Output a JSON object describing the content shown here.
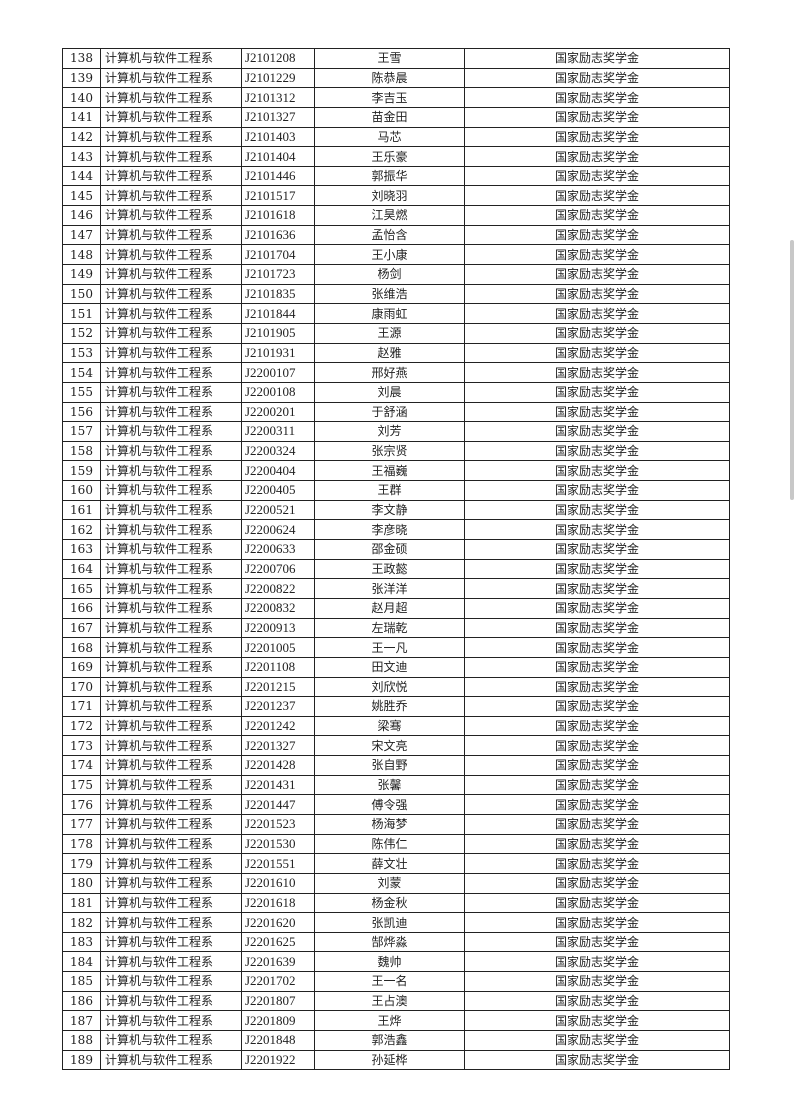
{
  "table": {
    "rows": [
      [
        "138",
        "计算机与软件工程系",
        "J2101208",
        "王雪",
        "国家励志奖学金"
      ],
      [
        "139",
        "计算机与软件工程系",
        "J2101229",
        "陈恭晨",
        "国家励志奖学金"
      ],
      [
        "140",
        "计算机与软件工程系",
        "J2101312",
        "李吉玉",
        "国家励志奖学金"
      ],
      [
        "141",
        "计算机与软件工程系",
        "J2101327",
        "苗金田",
        "国家励志奖学金"
      ],
      [
        "142",
        "计算机与软件工程系",
        "J2101403",
        "马芯",
        "国家励志奖学金"
      ],
      [
        "143",
        "计算机与软件工程系",
        "J2101404",
        "王乐豪",
        "国家励志奖学金"
      ],
      [
        "144",
        "计算机与软件工程系",
        "J2101446",
        "郭振华",
        "国家励志奖学金"
      ],
      [
        "145",
        "计算机与软件工程系",
        "J2101517",
        "刘晓羽",
        "国家励志奖学金"
      ],
      [
        "146",
        "计算机与软件工程系",
        "J2101618",
        "江昊燃",
        "国家励志奖学金"
      ],
      [
        "147",
        "计算机与软件工程系",
        "J2101636",
        "孟怡含",
        "国家励志奖学金"
      ],
      [
        "148",
        "计算机与软件工程系",
        "J2101704",
        "王小康",
        "国家励志奖学金"
      ],
      [
        "149",
        "计算机与软件工程系",
        "J2101723",
        "杨剑",
        "国家励志奖学金"
      ],
      [
        "150",
        "计算机与软件工程系",
        "J2101835",
        "张维浩",
        "国家励志奖学金"
      ],
      [
        "151",
        "计算机与软件工程系",
        "J2101844",
        "康雨虹",
        "国家励志奖学金"
      ],
      [
        "152",
        "计算机与软件工程系",
        "J2101905",
        "王源",
        "国家励志奖学金"
      ],
      [
        "153",
        "计算机与软件工程系",
        "J2101931",
        "赵雅",
        "国家励志奖学金"
      ],
      [
        "154",
        "计算机与软件工程系",
        "J2200107",
        "邢好燕",
        "国家励志奖学金"
      ],
      [
        "155",
        "计算机与软件工程系",
        "J2200108",
        "刘晨",
        "国家励志奖学金"
      ],
      [
        "156",
        "计算机与软件工程系",
        "J2200201",
        "于舒涵",
        "国家励志奖学金"
      ],
      [
        "157",
        "计算机与软件工程系",
        "J2200311",
        "刘芳",
        "国家励志奖学金"
      ],
      [
        "158",
        "计算机与软件工程系",
        "J2200324",
        "张宗贤",
        "国家励志奖学金"
      ],
      [
        "159",
        "计算机与软件工程系",
        "J2200404",
        "王福巍",
        "国家励志奖学金"
      ],
      [
        "160",
        "计算机与软件工程系",
        "J2200405",
        "王群",
        "国家励志奖学金"
      ],
      [
        "161",
        "计算机与软件工程系",
        "J2200521",
        "李文静",
        "国家励志奖学金"
      ],
      [
        "162",
        "计算机与软件工程系",
        "J2200624",
        "李彦晓",
        "国家励志奖学金"
      ],
      [
        "163",
        "计算机与软件工程系",
        "J2200633",
        "邵金硕",
        "国家励志奖学金"
      ],
      [
        "164",
        "计算机与软件工程系",
        "J2200706",
        "王政懿",
        "国家励志奖学金"
      ],
      [
        "165",
        "计算机与软件工程系",
        "J2200822",
        "张洋洋",
        "国家励志奖学金"
      ],
      [
        "166",
        "计算机与软件工程系",
        "J2200832",
        "赵月超",
        "国家励志奖学金"
      ],
      [
        "167",
        "计算机与软件工程系",
        "J2200913",
        "左瑞乾",
        "国家励志奖学金"
      ],
      [
        "168",
        "计算机与软件工程系",
        "J2201005",
        "王一凡",
        "国家励志奖学金"
      ],
      [
        "169",
        "计算机与软件工程系",
        "J2201108",
        "田文迪",
        "国家励志奖学金"
      ],
      [
        "170",
        "计算机与软件工程系",
        "J2201215",
        "刘欣悦",
        "国家励志奖学金"
      ],
      [
        "171",
        "计算机与软件工程系",
        "J2201237",
        "姚胜乔",
        "国家励志奖学金"
      ],
      [
        "172",
        "计算机与软件工程系",
        "J2201242",
        "梁骞",
        "国家励志奖学金"
      ],
      [
        "173",
        "计算机与软件工程系",
        "J2201327",
        "宋文亮",
        "国家励志奖学金"
      ],
      [
        "174",
        "计算机与软件工程系",
        "J2201428",
        "张自野",
        "国家励志奖学金"
      ],
      [
        "175",
        "计算机与软件工程系",
        "J2201431",
        "张馨",
        "国家励志奖学金"
      ],
      [
        "176",
        "计算机与软件工程系",
        "J2201447",
        "傅令强",
        "国家励志奖学金"
      ],
      [
        "177",
        "计算机与软件工程系",
        "J2201523",
        "杨海梦",
        "国家励志奖学金"
      ],
      [
        "178",
        "计算机与软件工程系",
        "J2201530",
        "陈伟仁",
        "国家励志奖学金"
      ],
      [
        "179",
        "计算机与软件工程系",
        "J2201551",
        "薛文壮",
        "国家励志奖学金"
      ],
      [
        "180",
        "计算机与软件工程系",
        "J2201610",
        "刘蒙",
        "国家励志奖学金"
      ],
      [
        "181",
        "计算机与软件工程系",
        "J2201618",
        "杨金秋",
        "国家励志奖学金"
      ],
      [
        "182",
        "计算机与软件工程系",
        "J2201620",
        "张凯迪",
        "国家励志奖学金"
      ],
      [
        "183",
        "计算机与软件工程系",
        "J2201625",
        "郜烨淼",
        "国家励志奖学金"
      ],
      [
        "184",
        "计算机与软件工程系",
        "J2201639",
        "魏帅",
        "国家励志奖学金"
      ],
      [
        "185",
        "计算机与软件工程系",
        "J2201702",
        "王一名",
        "国家励志奖学金"
      ],
      [
        "186",
        "计算机与软件工程系",
        "J2201807",
        "王占澳",
        "国家励志奖学金"
      ],
      [
        "187",
        "计算机与软件工程系",
        "J2201809",
        "王烨",
        "国家励志奖学金"
      ],
      [
        "188",
        "计算机与软件工程系",
        "J2201848",
        "郭浩鑫",
        "国家励志奖学金"
      ],
      [
        "189",
        "计算机与软件工程系",
        "J2201922",
        "孙延桦",
        "国家励志奖学金"
      ]
    ]
  }
}
